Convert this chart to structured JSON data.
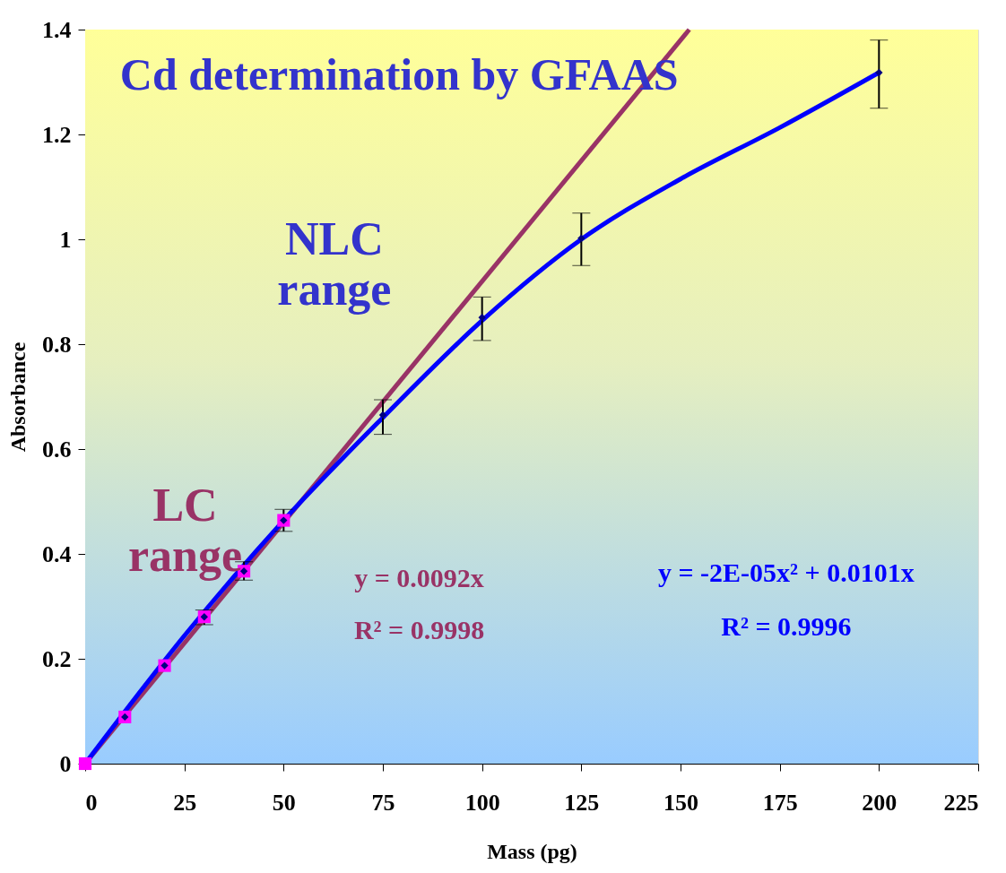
{
  "chart_data": {
    "type": "scatter",
    "title": "Cd determination by GFAAS",
    "xlabel": "Mass (pg)",
    "ylabel": "Absorbance",
    "xlim": [
      0,
      225
    ],
    "xticks": [
      0,
      25,
      50,
      75,
      100,
      125,
      150,
      175,
      200,
      225
    ],
    "ylim": [
      0,
      1.4
    ],
    "yticks": [
      0,
      0.2,
      0.4,
      0.6,
      0.8,
      1,
      1.2,
      1.4
    ],
    "series": [
      {
        "marker": "square",
        "color": "#ff00ff",
        "x": [
          0,
          10,
          20,
          30,
          40,
          50
        ],
        "values": [
          0,
          0.089,
          0.187,
          0.28,
          0.367,
          0.464
        ]
      },
      {
        "marker": "diamond",
        "color": "#000080",
        "x": [
          10,
          20,
          30,
          40,
          50,
          75,
          100,
          125,
          200
        ],
        "values": [
          0.089,
          0.187,
          0.28,
          0.367,
          0.464,
          0.665,
          0.851,
          1.002,
          1.318
        ],
        "errors": [
          null,
          null,
          [
            0.265,
            0.293
          ],
          [
            0.35,
            0.385
          ],
          [
            0.443,
            0.485
          ],
          [
            0.628,
            0.694
          ],
          [
            0.807,
            0.89
          ],
          [
            0.95,
            1.05
          ],
          [
            1.25,
            1.38
          ]
        ]
      },
      {
        "type": "line",
        "marker": "none",
        "color": "#993366",
        "x": [
          0,
          152.2
        ],
        "values": [
          0,
          1.4
        ]
      },
      {
        "type": "line",
        "marker": "none",
        "color": "#0000ff",
        "x": [
          0,
          25,
          50,
          75,
          100,
          125,
          150,
          175,
          200
        ],
        "values": [
          0,
          0.244,
          0.464,
          0.66,
          0.845,
          1.0,
          1.115,
          1.213,
          1.318
        ]
      }
    ],
    "annotations": [
      "NLC range",
      "LC range",
      "y = 0.0092x",
      "R² = 0.9998",
      "y = -2E-05x² + 0.0101x",
      "R² = 0.9996"
    ]
  }
}
